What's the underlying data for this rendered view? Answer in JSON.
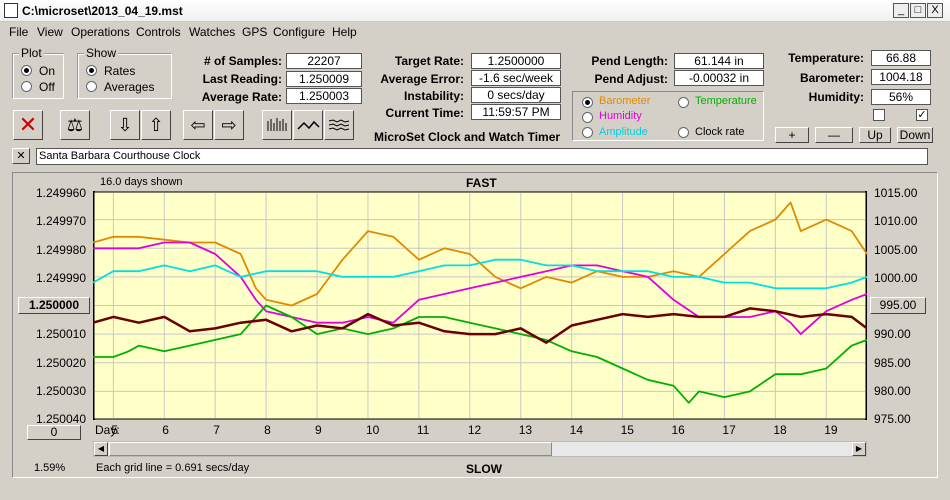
{
  "window": {
    "title": "C:\\microset\\2013_04_19.mst",
    "min_glyph": "_",
    "max_glyph": "□",
    "close_glyph": "X"
  },
  "menu": [
    "File",
    "View",
    "Operations",
    "Controls",
    "Watches",
    "GPS",
    "Configure",
    "Help"
  ],
  "plot_group": {
    "title": "Plot",
    "on": "On",
    "off": "Off",
    "selected": "On"
  },
  "show_group": {
    "title": "Show",
    "rates": "Rates",
    "averages": "Averages",
    "selected": "Rates"
  },
  "stats": {
    "samples_label": "# of Samples:",
    "samples": "22207",
    "last_label": "Last Reading:",
    "last": "1.250009",
    "avg_label": "Average Rate:",
    "avg": "1.250003",
    "target_label": "Target Rate:",
    "target": "1.2500000",
    "avgerr_label": "Average Error:",
    "avgerr": "-1.6 sec/week",
    "instab_label": "Instability:",
    "instab": "0 secs/day",
    "time_label": "Current Time:",
    "time": "11:59:57 PM",
    "pendlen_label": "Pend Length:",
    "pendlen": "61.144 in",
    "pendadj_label": "Pend Adjust:",
    "pendadj": "-0.00032 in",
    "temp_label": "Temperature:",
    "temp": "66.88",
    "baro_label": "Barometer:",
    "baro": "1004.18",
    "hum_label": "Humidity:",
    "hum": "56%"
  },
  "toolbar": {
    "close": "✕",
    "scale": "⚖",
    "down": "⇩",
    "up": "⇧",
    "left": "⇦",
    "right": "⇨"
  },
  "app_title": "MicroSet Clock and Watch Timer",
  "sensor_select": {
    "barometer": "Barometer",
    "temperature": "Temperature",
    "humidity": "Humidity",
    "amplitude": "Amplitude",
    "clockrate": "Clock rate",
    "selected": "Barometer"
  },
  "right_buttons": {
    "plus": "+",
    "minus": "—",
    "up": "Up",
    "down": "Down"
  },
  "checkbox2_mark": "✓",
  "clock_name": "Santa Barbara Courthouse Clock",
  "clock_close": "✕",
  "colors": {
    "barometer": "#e08a00",
    "temperature": "#00b000",
    "humidity": "#e000e0",
    "amplitude": "#00e0e0",
    "rate": "#6b0000",
    "plot_bg": "#ffffc8"
  },
  "chart_data": {
    "type": "line",
    "days_shown": "16.0 days shown",
    "top_label": "FAST",
    "bottom_label": "SLOW",
    "percent": "1.59%",
    "grid_note": "Each grid line = 0.691 secs/day",
    "left_ticks": [
      "1.249960",
      "1.249970",
      "1.249980",
      "1.249990",
      "1.250000",
      "1.250010",
      "1.250020",
      "1.250030",
      "1.250040"
    ],
    "right_ticks": [
      "1015.00",
      "1010.00",
      "1005.00",
      "1000.00",
      "995.00",
      "990.00",
      "985.00",
      "980.00",
      "975.00"
    ],
    "left_center_button": "1.250000",
    "right_center_button": "995.00",
    "left_bottom_button": "0",
    "day_label": "Day:",
    "days": [
      "5",
      "6",
      "7",
      "8",
      "9",
      "10",
      "11",
      "12",
      "13",
      "14",
      "15",
      "16",
      "17",
      "18",
      "19"
    ],
    "ylim_left": [
      1.24996,
      1.25004
    ],
    "ylim_right": [
      975,
      1015
    ],
    "xlim": [
      4.6,
      19.8
    ],
    "series": [
      {
        "name": "Barometer",
        "axis": "right",
        "x": [
          4.6,
          5,
          5.5,
          6,
          6.5,
          7,
          7.5,
          7.8,
          8,
          8.5,
          9,
          9.5,
          10,
          10.5,
          11,
          11.5,
          12,
          12.5,
          13,
          13.5,
          14,
          14.5,
          15,
          15.5,
          16,
          16.5,
          17,
          17.5,
          18,
          18.3,
          18.5,
          19,
          19.5,
          19.8
        ],
        "y": [
          1006,
          1007,
          1007,
          1006.5,
          1006,
          1006,
          1004,
          998,
          996,
          995,
          997,
          1003,
          1008,
          1007,
          1003,
          1005,
          1004,
          1000,
          998,
          1000,
          999,
          1001,
          1000,
          1000,
          1001,
          1000,
          1004,
          1008,
          1010,
          1013,
          1008,
          1010,
          1008,
          1004
        ]
      },
      {
        "name": "Humidity",
        "axis": "right",
        "x": [
          4.6,
          5,
          5.5,
          6,
          6.5,
          7,
          7.5,
          7.8,
          8,
          8.5,
          9,
          9.5,
          10,
          10.5,
          11,
          11.5,
          12,
          12.5,
          13,
          13.5,
          14,
          14.5,
          15,
          15.5,
          16,
          16.5,
          17,
          17.5,
          18,
          18.3,
          18.5,
          19,
          19.5,
          19.8
        ],
        "y": [
          1005,
          1005,
          1005,
          1006,
          1006,
          1004,
          1000,
          996,
          994,
          993,
          992,
          992,
          993,
          992,
          996,
          997,
          998,
          999,
          1000,
          1001,
          1002,
          1002,
          1001,
          1000,
          996,
          993,
          993,
          993,
          994,
          992,
          990,
          994,
          996,
          997
        ]
      },
      {
        "name": "Amplitude",
        "axis": "right",
        "x": [
          4.6,
          5,
          5.5,
          6,
          6.5,
          7,
          7.5,
          8,
          8.5,
          9,
          9.5,
          10,
          10.5,
          11,
          11.5,
          12,
          12.5,
          13,
          13.5,
          14,
          14.5,
          15,
          15.5,
          16,
          16.5,
          17,
          17.5,
          18,
          18.5,
          19,
          19.5,
          19.8
        ],
        "y": [
          999,
          1001,
          1001,
          1002,
          1001,
          1002,
          1000,
          1001,
          1001,
          1001,
          1000,
          1000,
          1000,
          1001,
          1002,
          1002,
          1003,
          1003,
          1002,
          1002,
          1001,
          1001,
          1001,
          1000,
          1000,
          999,
          999,
          998,
          998,
          998,
          999,
          1000
        ]
      },
      {
        "name": "Temperature",
        "axis": "right",
        "x": [
          4.6,
          5,
          5.3,
          5.5,
          6,
          6.5,
          7,
          7.5,
          7.8,
          8,
          8.5,
          9,
          9.5,
          10,
          10.5,
          11,
          11.5,
          12,
          12.5,
          13,
          13.5,
          14,
          14.5,
          15,
          15.5,
          16,
          16.3,
          16.5,
          17,
          17.5,
          18,
          18.5,
          19,
          19.5,
          19.8
        ],
        "y": [
          986,
          986,
          987,
          988,
          987,
          988,
          989,
          990,
          993,
          995,
          993,
          990,
          991,
          990,
          991,
          993,
          993,
          992,
          991,
          990,
          989,
          987,
          986,
          984,
          982,
          981,
          978,
          980,
          979,
          980,
          983,
          983,
          984,
          988,
          989
        ]
      },
      {
        "name": "Rate",
        "axis": "left",
        "x": [
          4.6,
          5,
          5.5,
          6,
          6.5,
          7,
          7.5,
          8,
          8.5,
          9,
          9.5,
          10,
          10.5,
          11,
          11.5,
          12,
          12.5,
          13,
          13.5,
          14,
          14.5,
          15,
          15.5,
          16,
          16.5,
          17,
          17.5,
          18,
          18.5,
          19,
          19.5,
          19.8
        ],
        "y": [
          1.250006,
          1.250004,
          1.250006,
          1.250004,
          1.250009,
          1.250008,
          1.250006,
          1.250005,
          1.250009,
          1.250007,
          1.250008,
          1.250003,
          1.250007,
          1.250006,
          1.250009,
          1.25001,
          1.25001,
          1.250008,
          1.250013,
          1.250007,
          1.250005,
          1.250003,
          1.250004,
          1.250003,
          1.250004,
          1.250004,
          1.250001,
          1.250002,
          1.250004,
          1.250003,
          1.250004,
          1.250008
        ]
      }
    ]
  }
}
